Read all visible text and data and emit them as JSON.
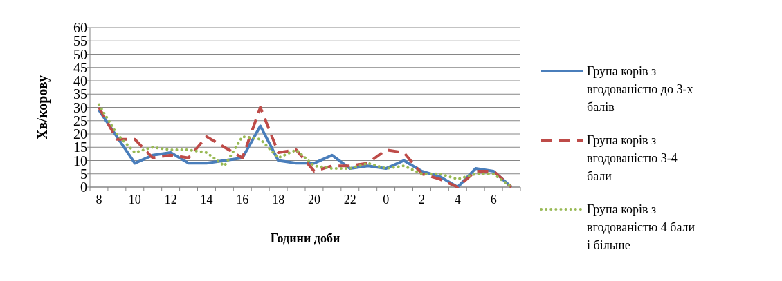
{
  "chart_data": {
    "type": "line",
    "xlabel": "Години доби",
    "ylabel": "Хв/корову",
    "categories": [
      "8",
      null,
      "10",
      null,
      "12",
      null,
      "14",
      null,
      "16",
      null,
      "18",
      null,
      "20",
      null,
      "22",
      null,
      "0",
      null,
      "2",
      null,
      "4",
      null,
      "6",
      null
    ],
    "ylim": [
      0,
      60
    ],
    "yticks": [
      0,
      5,
      10,
      15,
      20,
      25,
      30,
      35,
      40,
      45,
      50,
      55,
      60
    ],
    "grid": "y",
    "legend": "right",
    "series": [
      {
        "name": "Група корів з вгодованістю до 3-х балів",
        "color": "#4a7ebb",
        "line_style": "solid",
        "values": [
          29,
          19,
          9,
          12,
          13,
          9,
          9,
          10,
          11,
          23,
          10,
          9,
          9,
          12,
          7,
          8,
          7,
          10,
          6,
          4,
          0,
          7,
          6,
          0
        ]
      },
      {
        "name": "Група корів з вгодованістю 3-4 бали",
        "color": "#be4b48",
        "line_style": "dashed",
        "values": [
          30,
          18,
          18,
          11,
          12,
          11,
          19,
          15,
          11,
          30,
          13,
          14,
          6,
          8,
          8,
          9,
          14,
          13,
          5,
          3,
          0,
          6,
          6,
          0
        ]
      },
      {
        "name": "Група корів з вгодованістю 4 бали і більше",
        "color": "#98b954",
        "line_style": "dotted",
        "values": [
          31,
          20,
          13,
          15,
          14,
          14,
          13,
          8,
          19,
          18,
          11,
          14,
          8,
          7,
          7,
          9,
          7,
          8,
          5,
          5,
          3,
          5,
          5,
          0
        ]
      }
    ]
  }
}
